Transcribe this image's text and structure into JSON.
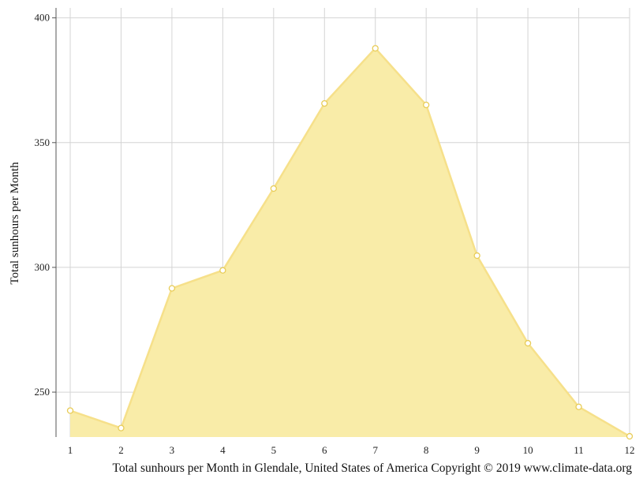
{
  "chart_data": {
    "type": "area",
    "title": "",
    "xlabel": "Total sunhours per Month in Glendale, United States of America Copyright © 2019 www.climate-data.org",
    "ylabel": "Total sunhours per Month",
    "x": [
      1,
      2,
      3,
      4,
      5,
      6,
      7,
      8,
      9,
      10,
      11,
      12
    ],
    "series": [
      {
        "values": [
          242.6,
          235.6,
          291.6,
          298.8,
          331.6,
          365.7,
          387.8,
          365.1,
          304.7,
          269.6,
          244.1,
          232.3
        ]
      }
    ],
    "xlim": [
      1,
      12
    ],
    "ylim": [
      232,
      404
    ],
    "yticks": [
      250,
      300,
      350,
      400
    ],
    "grid": true,
    "legend": "none",
    "colors": {
      "fill": "#f9eca8",
      "line": "#f6e08a",
      "marker_edge": "#e8cc57",
      "grid": "#d4d4d4",
      "axis": "#555555"
    }
  }
}
